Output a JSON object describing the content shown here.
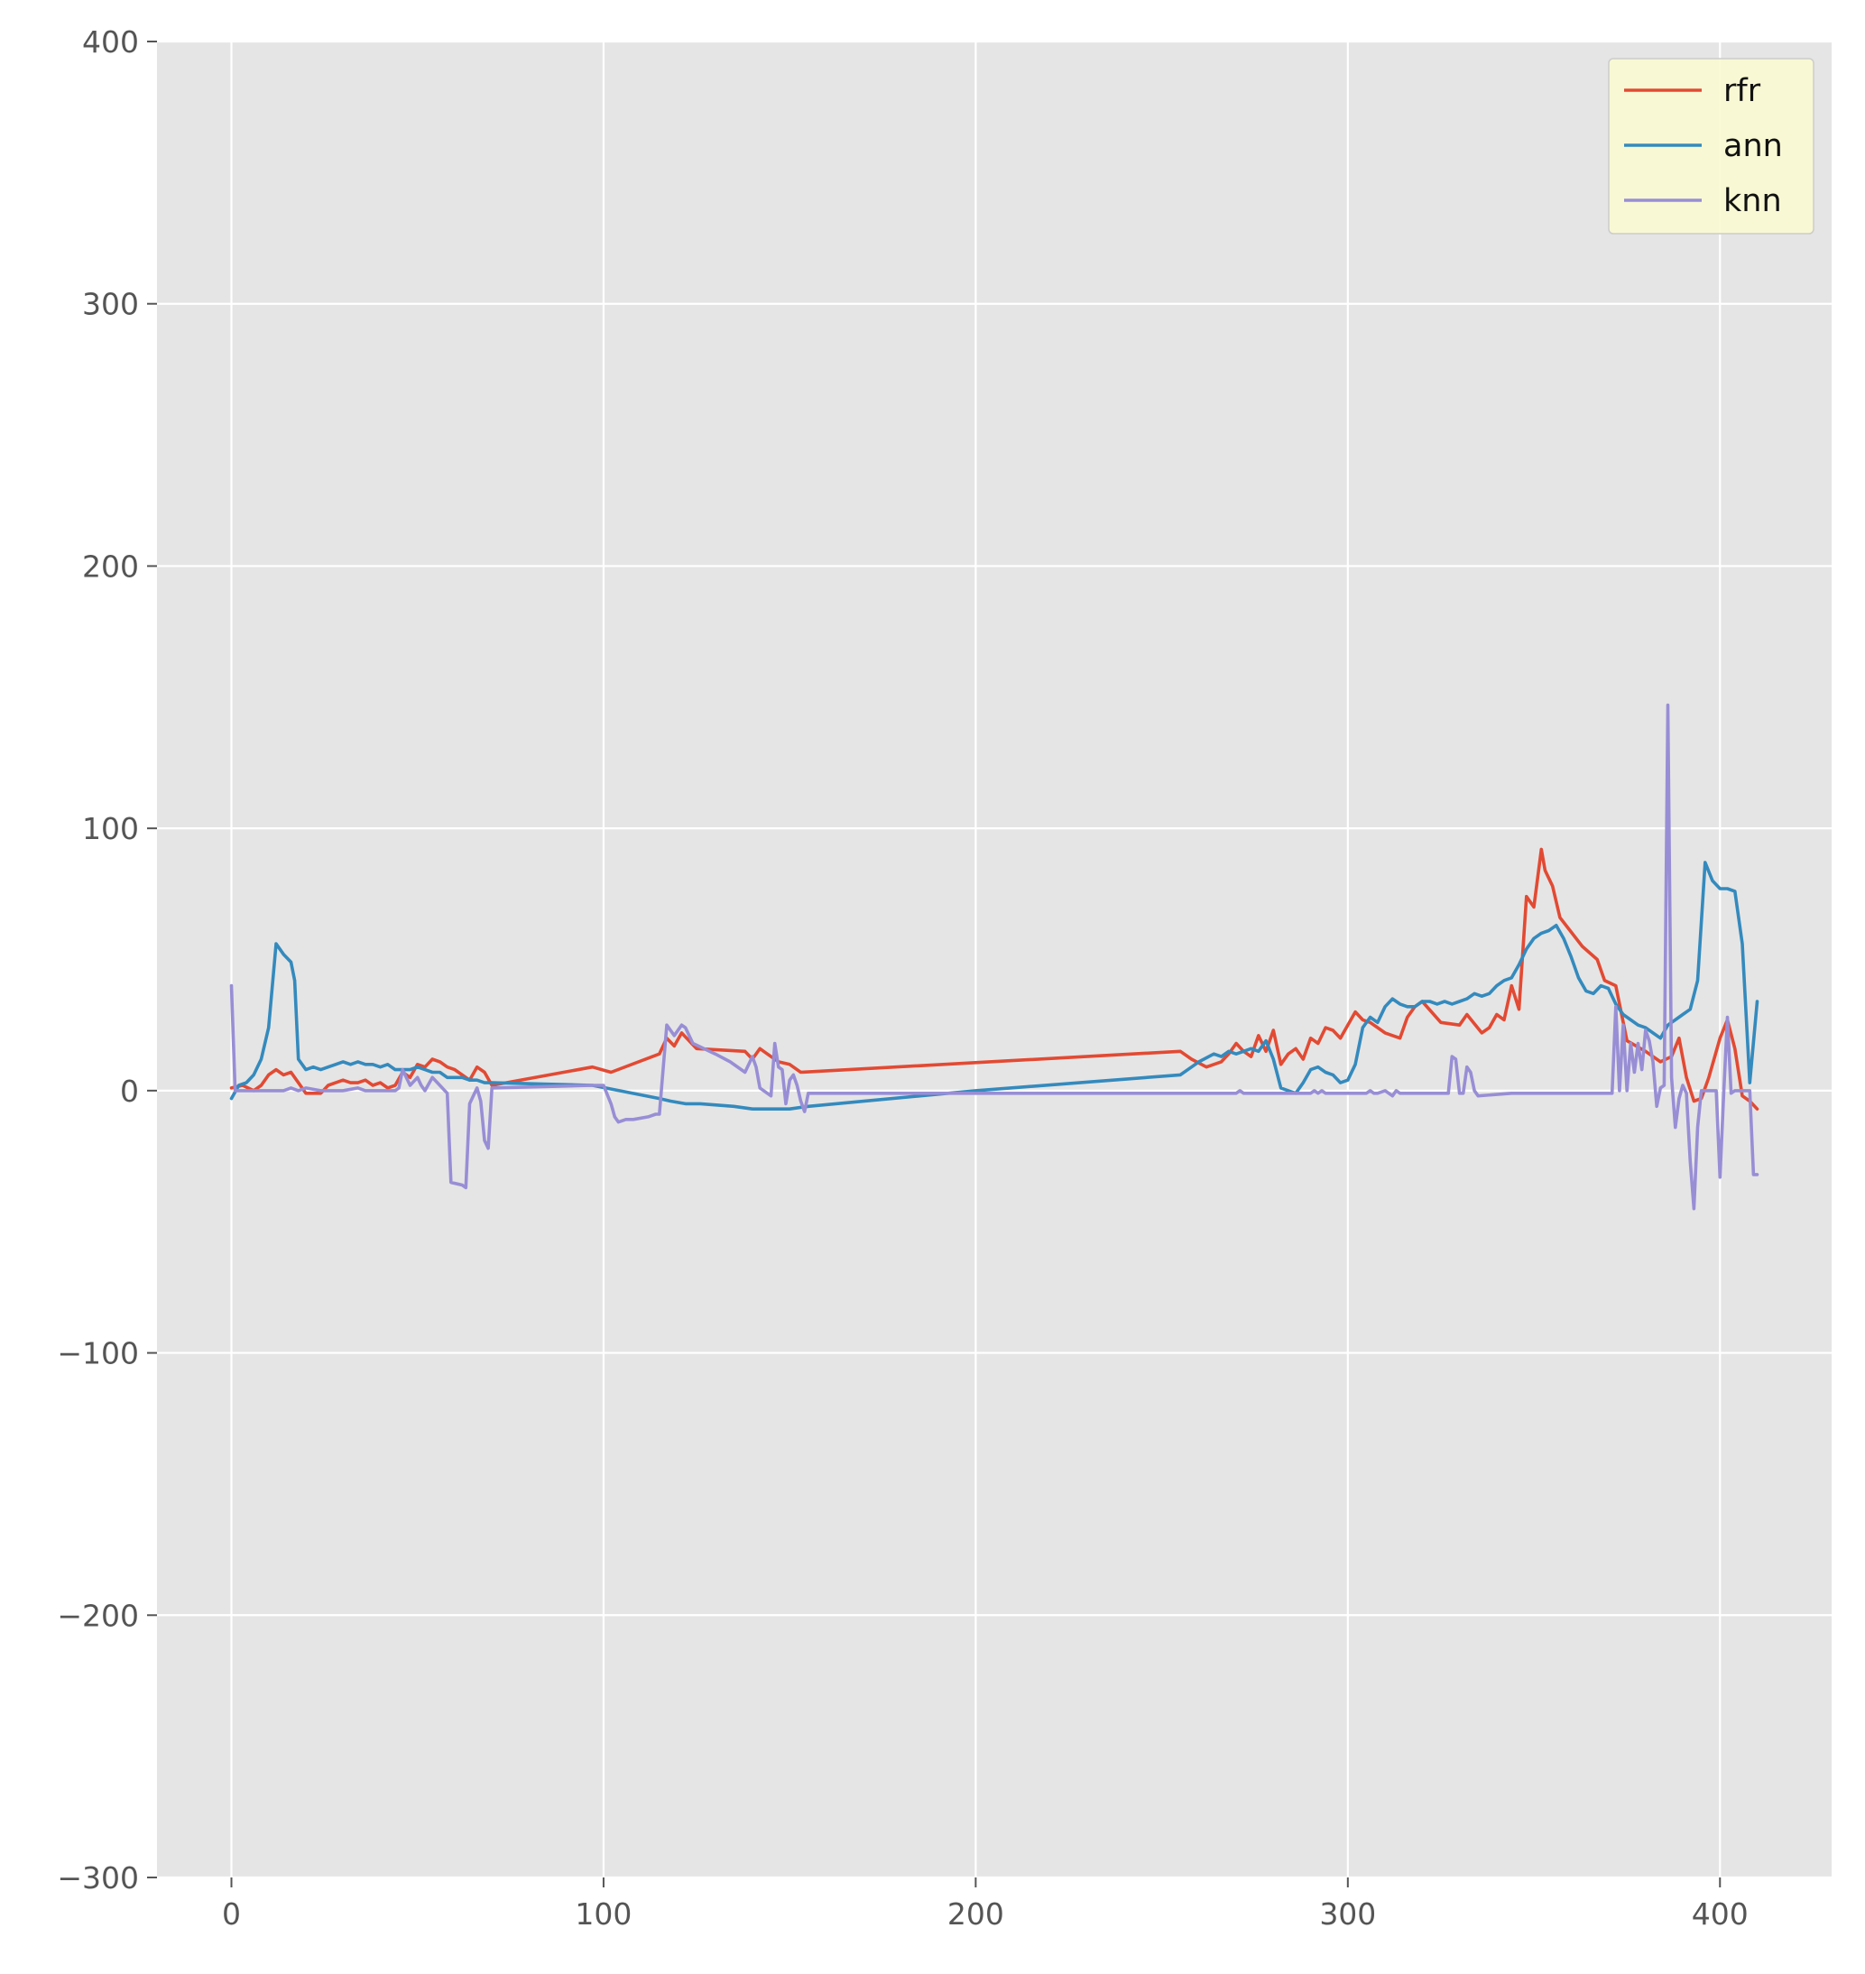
{
  "chart_data": {
    "type": "line",
    "title": "",
    "xlabel": "",
    "ylabel": "",
    "xlim": [
      -20,
      430
    ],
    "ylim": [
      -300,
      400
    ],
    "x_ticks": [
      0,
      100,
      200,
      300,
      400
    ],
    "y_ticks": [
      -300,
      -200,
      -100,
      0,
      100,
      200,
      300,
      400
    ],
    "x_tick_labels": [
      "0",
      "100",
      "200",
      "300",
      "400"
    ],
    "y_tick_labels": [
      "−300",
      "−200",
      "−100",
      "0",
      "100",
      "200",
      "300",
      "400"
    ],
    "grid": true,
    "legend_position": "top-right",
    "series": [
      {
        "name": "rfr",
        "color": "#E24A33",
        "x": [
          0,
          3,
          6,
          8,
          10,
          12,
          14,
          16,
          18,
          20,
          22,
          24,
          26,
          28,
          30,
          32,
          34,
          36,
          38,
          40,
          42,
          44,
          46,
          48,
          50,
          52,
          54,
          56,
          58,
          60,
          62,
          64,
          66,
          68,
          70,
          97,
          102,
          115,
          117,
          119,
          121,
          125,
          138,
          140,
          142,
          144,
          147,
          150,
          153,
          255,
          258,
          262,
          266,
          268,
          270,
          272,
          274,
          276,
          278,
          280,
          282,
          284,
          286,
          288,
          290,
          292,
          294,
          296,
          298,
          300,
          302,
          304,
          306,
          310,
          314,
          316,
          318,
          320,
          325,
          330,
          332,
          336,
          338,
          340,
          342,
          344,
          346,
          348,
          350,
          352,
          353,
          355,
          357,
          363,
          367,
          369,
          372,
          375,
          380,
          384,
          387,
          389,
          391,
          393,
          395,
          397,
          400,
          402,
          404,
          406,
          408,
          410
        ],
        "y": [
          1,
          2,
          0,
          2,
          6,
          8,
          6,
          7,
          3,
          -1,
          -1,
          -1,
          2,
          3,
          4,
          3,
          3,
          4,
          2,
          3,
          1,
          2,
          7,
          5,
          10,
          9,
          12,
          11,
          9,
          8,
          6,
          4,
          9,
          7,
          2,
          9,
          7,
          14,
          20,
          17,
          22,
          16,
          15,
          12,
          16,
          14,
          11,
          10,
          7,
          15,
          12,
          9,
          11,
          14,
          18,
          15,
          13,
          21,
          15,
          23,
          10,
          14,
          16,
          12,
          20,
          18,
          24,
          23,
          20,
          25,
          30,
          27,
          26,
          22,
          20,
          28,
          32,
          34,
          26,
          25,
          29,
          22,
          24,
          29,
          27,
          40,
          31,
          74,
          70,
          92,
          84,
          78,
          66,
          55,
          50,
          42,
          40,
          19,
          15,
          11,
          13,
          20,
          5,
          -4,
          -3,
          5,
          20,
          27,
          16,
          -2,
          -4,
          -7
        ]
      },
      {
        "name": "ann",
        "color": "#348ABD",
        "x": [
          0,
          2,
          4,
          6,
          8,
          10,
          12,
          14,
          16,
          17,
          18,
          20,
          22,
          24,
          26,
          28,
          30,
          32,
          34,
          36,
          38,
          40,
          42,
          44,
          46,
          48,
          50,
          52,
          54,
          56,
          58,
          60,
          62,
          64,
          66,
          68,
          70,
          97,
          115,
          118,
          122,
          126,
          135,
          140,
          145,
          150,
          155,
          200,
          255,
          258,
          260,
          264,
          266,
          268,
          270,
          272,
          274,
          276,
          278,
          280,
          282,
          284,
          286,
          288,
          290,
          292,
          294,
          296,
          298,
          300,
          302,
          304,
          306,
          308,
          310,
          312,
          314,
          316,
          318,
          320,
          322,
          324,
          326,
          328,
          330,
          332,
          334,
          336,
          338,
          340,
          342,
          344,
          346,
          348,
          350,
          352,
          354,
          356,
          358,
          360,
          362,
          364,
          366,
          368,
          370,
          372,
          374,
          376,
          378,
          380,
          382,
          384,
          386,
          388,
          390,
          392,
          394,
          396,
          398,
          400,
          402,
          404,
          406,
          408,
          410
        ],
        "y": [
          -3,
          2,
          3,
          6,
          12,
          24,
          56,
          52,
          49,
          42,
          12,
          8,
          9,
          8,
          9,
          10,
          11,
          10,
          11,
          10,
          10,
          9,
          10,
          8,
          8,
          8,
          9,
          8,
          7,
          7,
          5,
          5,
          5,
          4,
          4,
          3,
          3,
          2,
          -3,
          -4,
          -5,
          -5,
          -6,
          -7,
          -7,
          -7,
          -6,
          0,
          6,
          9,
          11,
          14,
          13,
          15,
          14,
          15,
          16,
          15,
          19,
          12,
          1,
          0,
          -1,
          3,
          8,
          9,
          7,
          6,
          3,
          4,
          10,
          24,
          28,
          26,
          32,
          35,
          33,
          32,
          32,
          34,
          34,
          33,
          34,
          33,
          34,
          35,
          37,
          36,
          37,
          40,
          42,
          43,
          48,
          54,
          58,
          60,
          61,
          63,
          58,
          51,
          43,
          38,
          37,
          40,
          39,
          33,
          29,
          27,
          25,
          24,
          22,
          20,
          25,
          27,
          29,
          31,
          42,
          87,
          80,
          77,
          77,
          76,
          56,
          3,
          34
        ]
      },
      {
        "name": "knn",
        "color": "#988ED5",
        "x": [
          0,
          1,
          2,
          10,
          14,
          16,
          18,
          20,
          24,
          30,
          34,
          36,
          38,
          44,
          45,
          46,
          48,
          50,
          51,
          52,
          54,
          56,
          58,
          59,
          62,
          63,
          64,
          66,
          67,
          68,
          69,
          70,
          97,
          100,
          102,
          103,
          104,
          106,
          108,
          112,
          114,
          115,
          117,
          119,
          121,
          122,
          124,
          130,
          134,
          138,
          140,
          141,
          142,
          144,
          145,
          146,
          147,
          148,
          149,
          150,
          151,
          152,
          153,
          154,
          155,
          270,
          271,
          272,
          290,
          291,
          292,
          293,
          294,
          295,
          305,
          306,
          307,
          308,
          310,
          311,
          312,
          313,
          314,
          327,
          328,
          329,
          330,
          331,
          332,
          333,
          334,
          335,
          344,
          369,
          370,
          371,
          372,
          373,
          374,
          375,
          376,
          377,
          378,
          379,
          380,
          381,
          382,
          383,
          384,
          385,
          386,
          387,
          388,
          389,
          390,
          391,
          392,
          393,
          394,
          395,
          396,
          397,
          398,
          399,
          400,
          401,
          402,
          403,
          404,
          405,
          406,
          407,
          408,
          409,
          410
        ],
        "y": [
          40,
          0,
          0,
          0,
          0,
          1,
          0,
          1,
          0,
          0,
          1,
          0,
          0,
          0,
          1,
          8,
          2,
          5,
          2,
          0,
          5,
          2,
          -1,
          -35,
          -36,
          -37,
          -5,
          1,
          -4,
          -19,
          -22,
          1,
          2,
          2,
          -5,
          -10,
          -12,
          -11,
          -11,
          -10,
          -9,
          -9,
          25,
          21,
          25,
          24,
          18,
          14,
          11,
          7,
          13,
          9,
          1,
          -1,
          -2,
          18,
          9,
          8,
          -5,
          4,
          6,
          2,
          -4,
          -8,
          -1,
          -1,
          0,
          -1,
          -1,
          0,
          -1,
          0,
          -1,
          -1,
          -1,
          0,
          -1,
          -1,
          0,
          -1,
          -2,
          0,
          -1,
          -1,
          13,
          12,
          -1,
          -1,
          9,
          7,
          0,
          -2,
          -1,
          -1,
          -1,
          -1,
          32,
          0,
          25,
          0,
          18,
          7,
          18,
          8,
          23,
          19,
          11,
          -6,
          1,
          2,
          147,
          5,
          -14,
          -3,
          2,
          -1,
          -27,
          -45,
          -14,
          0,
          0,
          0,
          0,
          0,
          -33,
          -1,
          28,
          -1,
          0,
          0,
          0,
          0,
          0,
          -32,
          -32
        ]
      }
    ]
  }
}
